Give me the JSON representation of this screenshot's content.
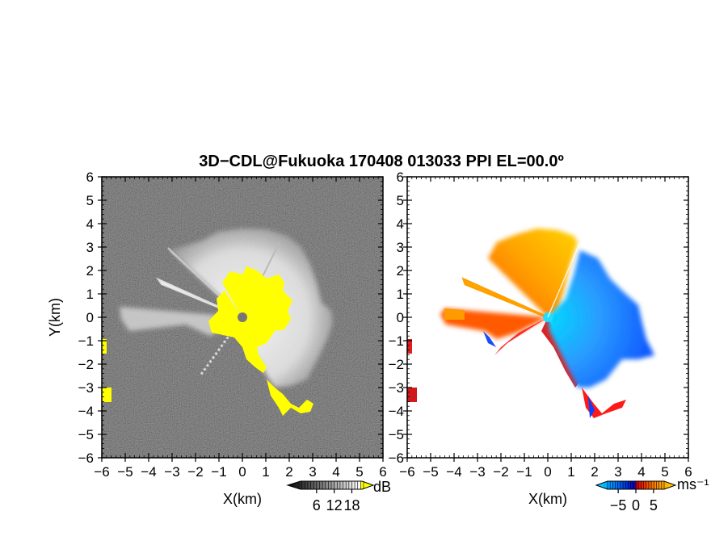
{
  "chart_data": [
    {
      "type": "heatmap",
      "panel": "reflectivity",
      "title": "3D−CDL@Fukuoka 170408 013033 PPI EL=00.0º",
      "xlabel": "X(km)",
      "ylabel": "Y(km)",
      "xlim": [
        -6,
        6
      ],
      "ylim": [
        -6,
        6
      ],
      "xticks": [
        "−6",
        "−5",
        "−4",
        "−3",
        "−2",
        "−1",
        "0",
        "1",
        "2",
        "3",
        "4",
        "5",
        "6"
      ],
      "yticks": [
        "6",
        "5",
        "4",
        "3",
        "2",
        "1",
        "0",
        "−1",
        "−2",
        "−3",
        "−4",
        "−5",
        "−6"
      ],
      "colorbar": {
        "unit": "dB",
        "ticks": [
          "6",
          "12",
          "18"
        ],
        "tick_values": [
          6,
          12,
          18
        ],
        "range": [
          0,
          22
        ],
        "colors": [
          "#000000",
          "#444444",
          "#888888",
          "#cccccc",
          "#ffffff",
          "#ffff00"
        ]
      },
      "background_color": "#2a2a2a",
      "saturated_color": "#ffff00"
    },
    {
      "type": "heatmap",
      "panel": "doppler_velocity",
      "xlabel": "X(km)",
      "xlim": [
        -6,
        6
      ],
      "ylim": [
        -6,
        6
      ],
      "xticks": [
        "−6",
        "−5",
        "−4",
        "−3",
        "−2",
        "−1",
        "0",
        "1",
        "2",
        "3",
        "4",
        "5",
        "6"
      ],
      "colorbar": {
        "unit": "ms⁻¹",
        "ticks": [
          "−5",
          "0",
          "5"
        ],
        "tick_values": [
          -5,
          0,
          5
        ],
        "range": [
          -8,
          8
        ],
        "colors": [
          "#00e5ff",
          "#0066ff",
          "#0000cc",
          "#ff0000",
          "#ff8800",
          "#ffd200"
        ]
      },
      "approaching_color": "#1e7bff",
      "receding_color": "#ffb000"
    }
  ]
}
